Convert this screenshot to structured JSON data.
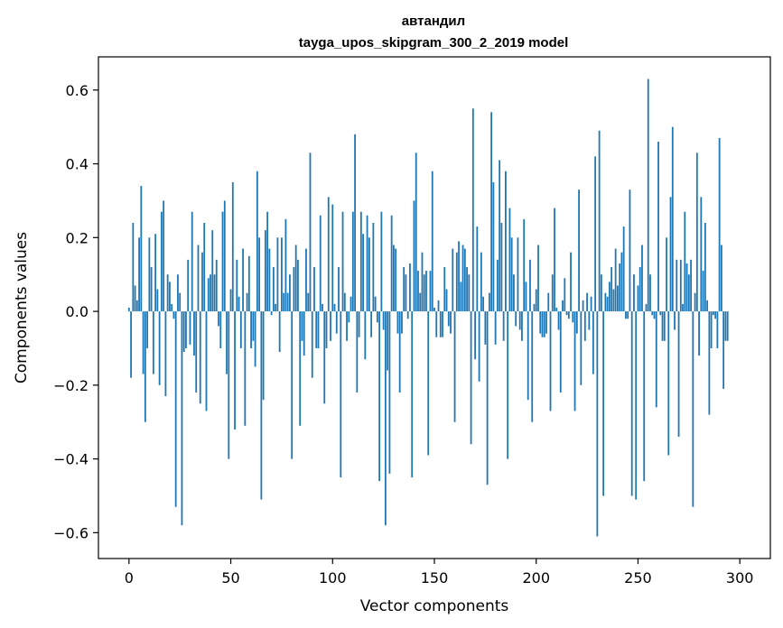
{
  "chart_data": {
    "type": "bar",
    "title_line1": "автандил",
    "title_line2": "tayga_upos_skipgram_300_2_2019 model",
    "xlabel": "Vector components",
    "ylabel": "Components values",
    "xlim": [
      -15,
      315
    ],
    "ylim": [
      -0.67,
      0.69
    ],
    "x_ticks": [
      0,
      50,
      100,
      150,
      200,
      250,
      300
    ],
    "x_tick_labels": [
      "0",
      "50",
      "100",
      "150",
      "200",
      "250",
      "300"
    ],
    "y_ticks": [
      -0.6,
      -0.4,
      -0.2,
      0.0,
      0.2,
      0.4,
      0.6
    ],
    "y_tick_labels": [
      "−0.6",
      "−0.4",
      "−0.2",
      "0.0",
      "0.2",
      "0.4",
      "0.6"
    ],
    "bar_color": "#1f77b4",
    "values": [
      0.01,
      -0.18,
      0.24,
      0.07,
      0.03,
      0.2,
      0.34,
      -0.17,
      -0.3,
      -0.1,
      0.2,
      0.12,
      -0.17,
      0.21,
      0.06,
      -0.2,
      0.27,
      0.3,
      -0.23,
      0.1,
      0.08,
      0.02,
      -0.02,
      -0.53,
      0.1,
      0.05,
      -0.58,
      -0.11,
      -0.1,
      0.14,
      -0.09,
      0.27,
      -0.12,
      -0.22,
      0.18,
      -0.25,
      0.16,
      0.24,
      -0.27,
      0.09,
      0.1,
      0.22,
      0.1,
      0.14,
      -0.04,
      -0.1,
      0.27,
      0.3,
      -0.17,
      -0.4,
      0.06,
      0.35,
      -0.32,
      0.14,
      0.04,
      -0.1,
      0.17,
      -0.31,
      0.05,
      0.15,
      -0.1,
      -0.08,
      -0.15,
      0.38,
      0.2,
      -0.51,
      -0.24,
      0.22,
      0.27,
      0.17,
      -0.01,
      0.12,
      0.02,
      0.2,
      -0.11,
      0.2,
      0.05,
      0.25,
      0.05,
      0.1,
      -0.4,
      0.12,
      0.18,
      0.14,
      -0.31,
      -0.08,
      -0.12,
      0.17,
      0.05,
      0.43,
      -0.18,
      0.12,
      -0.1,
      -0.1,
      0.26,
      0.02,
      -0.25,
      -0.1,
      0.31,
      -0.08,
      0.29,
      0.02,
      -0.06,
      0.12,
      -0.45,
      0.27,
      0.05,
      -0.08,
      -0.03,
      0.04,
      0.27,
      0.48,
      -0.22,
      -0.07,
      0.27,
      0.21,
      -0.13,
      0.26,
      0.2,
      -0.07,
      0.24,
      0.04,
      -0.03,
      -0.46,
      0.27,
      -0.05,
      -0.58,
      -0.16,
      -0.44,
      0.26,
      0.18,
      0.17,
      -0.06,
      -0.22,
      -0.06,
      0.12,
      0.1,
      -0.02,
      0.13,
      -0.45,
      0.3,
      0.43,
      0.11,
      0.05,
      0.16,
      0.1,
      0.11,
      -0.39,
      0.11,
      0.38,
      0.01,
      -0.07,
      0.03,
      -0.07,
      -0.07,
      0.12,
      0.06,
      -0.04,
      -0.06,
      0.17,
      -0.3,
      0.16,
      0.19,
      0.08,
      0.18,
      0.17,
      0.12,
      0.1,
      -0.36,
      0.55,
      -0.13,
      0.23,
      -0.19,
      0.16,
      0.04,
      -0.09,
      -0.47,
      0.05,
      0.54,
      0.35,
      -0.09,
      0.14,
      0.41,
      0.24,
      -0.08,
      0.38,
      -0.4,
      0.28,
      0.2,
      0.1,
      -0.04,
      0.2,
      -0.05,
      -0.08,
      0.25,
      0.08,
      -0.24,
      0.14,
      -0.3,
      0.02,
      0.06,
      0.18,
      -0.06,
      -0.07,
      -0.07,
      -0.06,
      0.05,
      -0.27,
      0.1,
      0.28,
      0.01,
      -0.05,
      -0.22,
      0.03,
      0.09,
      -0.01,
      -0.02,
      0.16,
      -0.03,
      -0.27,
      -0.06,
      0.33,
      -0.2,
      0.03,
      -0.08,
      0.05,
      -0.05,
      0.04,
      -0.17,
      0.42,
      -0.61,
      0.49,
      0.1,
      -0.5,
      0.05,
      0.04,
      0.08,
      0.12,
      0.06,
      0.17,
      0.07,
      0.13,
      0.16,
      0.23,
      -0.02,
      -0.02,
      0.33,
      -0.5,
      0.1,
      -0.51,
      0.07,
      0.12,
      0.18,
      -0.46,
      0.02,
      0.63,
      0.1,
      -0.01,
      -0.02,
      -0.26,
      0.46,
      -0.01,
      -0.08,
      -0.08,
      0.2,
      -0.39,
      0.31,
      0.5,
      -0.05,
      0.14,
      -0.34,
      0.14,
      0.02,
      0.27,
      0.13,
      0.1,
      0.14,
      -0.53,
      0.05,
      0.43,
      -0.12,
      0.31,
      0.11,
      0.24,
      0.03,
      -0.28,
      -0.1,
      -0.01,
      -0.02,
      -0.1,
      0.47,
      0.18,
      -0.21,
      -0.08,
      -0.08
    ]
  }
}
